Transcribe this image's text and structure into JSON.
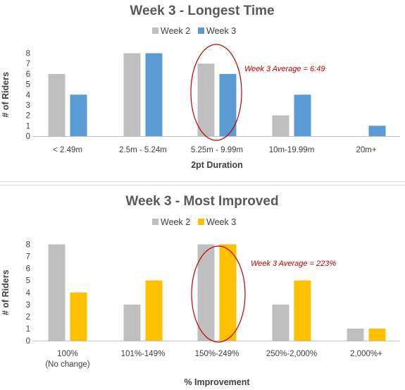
{
  "chart_data": [
    {
      "type": "bar",
      "title": "Week 3 - Longest Time",
      "xlabel": "2pt Duration",
      "ylabel": "# of Riders",
      "ylim": [
        0,
        8
      ],
      "yticks": [
        0,
        1,
        2,
        3,
        4,
        5,
        6,
        7,
        8
      ],
      "grid": false,
      "legend_position": "top",
      "categories": [
        "< 2.49m",
        "2.5m - 5.24m",
        "5.25m - 9.99m",
        "10m-19.99m",
        "20m+"
      ],
      "series": [
        {
          "name": "Week 2",
          "color": "#bfbfbf",
          "values": [
            6,
            8,
            7,
            2,
            0
          ]
        },
        {
          "name": "Week 3",
          "color": "#5b9bd5",
          "values": [
            4,
            8,
            6,
            4,
            1
          ]
        }
      ],
      "annotation": {
        "text": "Week 3 Average = 6:49",
        "color": "#c00000",
        "highlight_category_index": 2
      }
    },
    {
      "type": "bar",
      "title": "Week 3 - Most Improved",
      "xlabel": "% Improvement",
      "ylabel": "# of Riders",
      "ylim": [
        0,
        8
      ],
      "yticks": [
        0,
        1,
        2,
        3,
        4,
        5,
        6,
        7,
        8
      ],
      "grid": false,
      "legend_position": "top",
      "categories": [
        "100%\n(No change)",
        "101%-149%",
        "150%-249%",
        "250%-2,000%",
        "2,000%+"
      ],
      "series": [
        {
          "name": "Week 2",
          "color": "#bfbfbf",
          "values": [
            8,
            3,
            8,
            3,
            1
          ]
        },
        {
          "name": "Week 3",
          "color": "#ffc000",
          "values": [
            4,
            5,
            8,
            5,
            1
          ]
        }
      ],
      "annotation": {
        "text": "Week 3 Average = 223%",
        "color": "#c00000",
        "highlight_category_index": 2
      }
    }
  ]
}
